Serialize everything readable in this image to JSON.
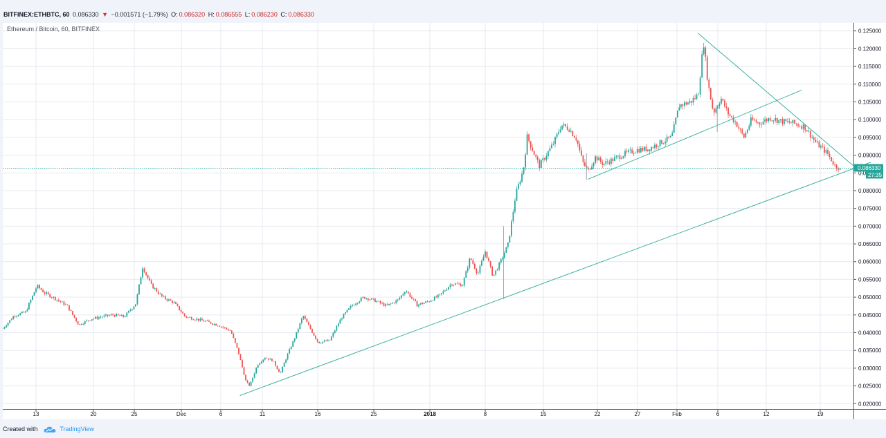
{
  "header": {
    "symbol": "BITFINEX:ETHBTC, 60",
    "last": "0.086330",
    "change_arrow": "▼",
    "change": "−0.001571 (−1.79%)",
    "o_label": "O:",
    "o_value": "0.086320",
    "h_label": "H:",
    "h_value": "0.086555",
    "l_label": "L:",
    "l_value": "0.086230",
    "c_label": "C:",
    "c_value": "0.086330"
  },
  "footer": {
    "created_with": "Created with",
    "brand": "TradingView",
    "brand_icon": "tradingview-cloud-icon"
  },
  "colors": {
    "up": "#26a69a",
    "down": "#ef5350",
    "trendline": "#3bb3a0",
    "price_line": "#26a69a",
    "price_tag": "#26a69a",
    "grid": "#e6e9f0"
  },
  "chart_data": {
    "type": "candlestick",
    "title": "Ethereum / Bitcoin, 60, BITFINEX",
    "ylim": [
      0.0185,
      0.1265
    ],
    "y_ticks": [
      "0.125000",
      "0.120000",
      "0.115000",
      "0.110000",
      "0.105000",
      "0.100000",
      "0.095000",
      "0.090000",
      "0.085000",
      "0.080000",
      "0.075000",
      "0.070000",
      "0.065000",
      "0.060000",
      "0.055000",
      "0.050000",
      "0.045000",
      "0.040000",
      "0.035000",
      "0.030000",
      "0.025000",
      "0.020000"
    ],
    "x_ticks": [
      "13",
      "20",
      "25",
      "Dec",
      "6",
      "11",
      "16",
      "25",
      "2018",
      "8",
      "15",
      "22",
      "27",
      "Feb",
      "6",
      "12",
      "19"
    ],
    "grid": true,
    "price_line": {
      "value": 0.08633,
      "label": "0.086330",
      "countdown": "27:35"
    },
    "series_path": [
      {
        "day": 0,
        "close": 0.0412
      },
      {
        "day": 1.5,
        "close": 0.0448
      },
      {
        "day": 3,
        "close": 0.0458
      },
      {
        "day": 4.5,
        "close": 0.0532
      },
      {
        "day": 5.5,
        "close": 0.0512
      },
      {
        "day": 7,
        "close": 0.0495
      },
      {
        "day": 8.5,
        "close": 0.0475
      },
      {
        "day": 10,
        "close": 0.0422
      },
      {
        "day": 11.5,
        "close": 0.0438
      },
      {
        "day": 13,
        "close": 0.0445
      },
      {
        "day": 14.5,
        "close": 0.045
      },
      {
        "day": 16,
        "close": 0.0445
      },
      {
        "day": 17.5,
        "close": 0.0482
      },
      {
        "day": 18.4,
        "close": 0.0585
      },
      {
        "day": 19.5,
        "close": 0.0535
      },
      {
        "day": 21,
        "close": 0.05
      },
      {
        "day": 22.5,
        "close": 0.0485
      },
      {
        "day": 24,
        "close": 0.0445
      },
      {
        "day": 25.5,
        "close": 0.0438
      },
      {
        "day": 27,
        "close": 0.043
      },
      {
        "day": 28.5,
        "close": 0.042
      },
      {
        "day": 30,
        "close": 0.0405
      },
      {
        "day": 31,
        "close": 0.0345
      },
      {
        "day": 32,
        "close": 0.0262
      },
      {
        "day": 32.5,
        "close": 0.025
      },
      {
        "day": 33.5,
        "close": 0.031
      },
      {
        "day": 34.5,
        "close": 0.033
      },
      {
        "day": 35.5,
        "close": 0.0322
      },
      {
        "day": 36.5,
        "close": 0.0285
      },
      {
        "day": 37.5,
        "close": 0.034
      },
      {
        "day": 38.5,
        "close": 0.039
      },
      {
        "day": 39.5,
        "close": 0.0448
      },
      {
        "day": 40.5,
        "close": 0.041
      },
      {
        "day": 41.5,
        "close": 0.0372
      },
      {
        "day": 43,
        "close": 0.0378
      },
      {
        "day": 44.5,
        "close": 0.044
      },
      {
        "day": 46,
        "close": 0.0478
      },
      {
        "day": 47.5,
        "close": 0.05
      },
      {
        "day": 49,
        "close": 0.049
      },
      {
        "day": 50.5,
        "close": 0.0475
      },
      {
        "day": 52,
        "close": 0.0492
      },
      {
        "day": 53,
        "close": 0.052
      },
      {
        "day": 54.5,
        "close": 0.0478
      },
      {
        "day": 56,
        "close": 0.0488
      },
      {
        "day": 57.5,
        "close": 0.0505
      },
      {
        "day": 59,
        "close": 0.0538
      },
      {
        "day": 60.5,
        "close": 0.0535
      },
      {
        "day": 61.5,
        "close": 0.0612
      },
      {
        "day": 62.5,
        "close": 0.0565
      },
      {
        "day": 63.5,
        "close": 0.063
      },
      {
        "day": 64.5,
        "close": 0.0558
      },
      {
        "day": 65.5,
        "close": 0.06
      },
      {
        "day": 66.5,
        "close": 0.065
      },
      {
        "day": 67.5,
        "close": 0.079
      },
      {
        "day": 68.5,
        "close": 0.086
      },
      {
        "day": 69,
        "close": 0.0952
      },
      {
        "day": 69.8,
        "close": 0.091
      },
      {
        "day": 70.6,
        "close": 0.087
      },
      {
        "day": 71.5,
        "close": 0.09
      },
      {
        "day": 72.5,
        "close": 0.0935
      },
      {
        "day": 73.5,
        "close": 0.0985
      },
      {
        "day": 74.5,
        "close": 0.0975
      },
      {
        "day": 75.5,
        "close": 0.0945
      },
      {
        "day": 76.3,
        "close": 0.088
      },
      {
        "day": 77,
        "close": 0.0855
      },
      {
        "day": 78,
        "close": 0.0895
      },
      {
        "day": 79,
        "close": 0.0875
      },
      {
        "day": 80.5,
        "close": 0.089
      },
      {
        "day": 82,
        "close": 0.0905
      },
      {
        "day": 83.5,
        "close": 0.0915
      },
      {
        "day": 85,
        "close": 0.0918
      },
      {
        "day": 86.5,
        "close": 0.0935
      },
      {
        "day": 88,
        "close": 0.095
      },
      {
        "day": 89,
        "close": 0.104
      },
      {
        "day": 90.5,
        "close": 0.105
      },
      {
        "day": 91.5,
        "close": 0.107
      },
      {
        "day": 92.2,
        "close": 0.122
      },
      {
        "day": 92.8,
        "close": 0.11
      },
      {
        "day": 93.5,
        "close": 0.102
      },
      {
        "day": 94.5,
        "close": 0.106
      },
      {
        "day": 95.5,
        "close": 0.1015
      },
      {
        "day": 96.5,
        "close": 0.099
      },
      {
        "day": 97.5,
        "close": 0.095
      },
      {
        "day": 98.5,
        "close": 0.1
      },
      {
        "day": 99.5,
        "close": 0.099
      },
      {
        "day": 101,
        "close": 0.1005
      },
      {
        "day": 102.5,
        "close": 0.0995
      },
      {
        "day": 104,
        "close": 0.099
      },
      {
        "day": 105.5,
        "close": 0.098
      },
      {
        "day": 107,
        "close": 0.0935
      },
      {
        "day": 108.5,
        "close": 0.0905
      },
      {
        "day": 109.5,
        "close": 0.087
      },
      {
        "day": 110.3,
        "close": 0.0863
      }
    ],
    "wick_spikes": [
      {
        "day": 65.9,
        "low": 0.0495,
        "high": 0.07
      },
      {
        "day": 94.0,
        "low": 0.0965,
        "high": 0.104
      },
      {
        "day": 76.8,
        "low": 0.083,
        "high": 0.0905
      }
    ],
    "trendlines": [
      {
        "from": {
          "day": 31.2,
          "value": 0.0223
        },
        "to": {
          "day": 114.2,
          "value": 0.088
        }
      },
      {
        "from": {
          "day": 77.0,
          "value": 0.0832
        },
        "to": {
          "day": 105.1,
          "value": 0.1083
        }
      },
      {
        "from": {
          "day": 91.5,
          "value": 0.1243
        },
        "to": {
          "day": 113.3,
          "value": 0.0845
        }
      }
    ]
  }
}
